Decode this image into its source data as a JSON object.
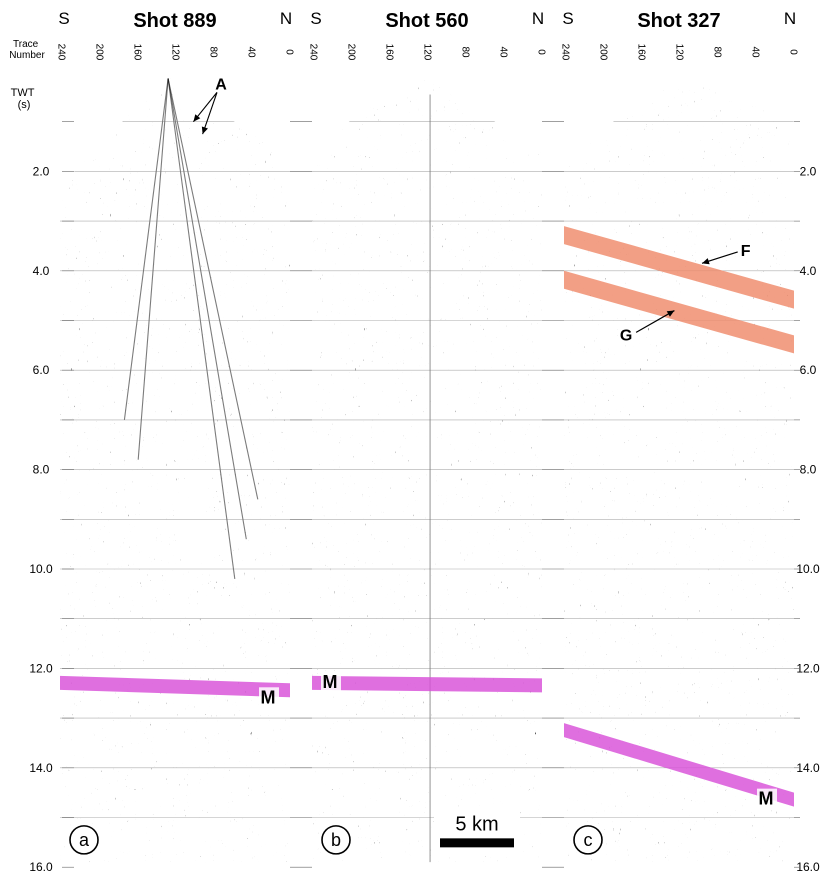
{
  "header": {
    "trace_label": "Trace\nNumber",
    "twt_label": "TWT\n(s)"
  },
  "time_axis": {
    "ticks": [
      "2.0",
      "4.0",
      "6.0",
      "8.0",
      "10.0",
      "12.0",
      "14.0",
      "16.0"
    ],
    "range_s": [
      0,
      16
    ]
  },
  "panels": [
    {
      "id": "a",
      "title": "Shot 889",
      "south_label": "S",
      "north_label": "N",
      "panel_letter": "a",
      "trace_ticks": [
        "240",
        "200",
        "160",
        "120",
        "80",
        "40",
        "0"
      ],
      "annotations": [
        {
          "letter": "A",
          "kind": "arrows"
        }
      ],
      "bands": [
        {
          "label": "M",
          "kind": "moho",
          "color": "#d84fd8",
          "twt_left_s": 12.15,
          "twt_right_s": 12.3
        }
      ]
    },
    {
      "id": "b",
      "title": "Shot 560",
      "south_label": "S",
      "north_label": "N",
      "panel_letter": "b",
      "trace_ticks": [
        "240",
        "200",
        "160",
        "120",
        "80",
        "40",
        "0"
      ],
      "annotations": [],
      "bands": [
        {
          "label": "M",
          "kind": "moho",
          "color": "#d84fd8",
          "twt_left_s": 12.15,
          "twt_right_s": 12.2
        }
      ],
      "scale_bar": {
        "label": "5 km"
      }
    },
    {
      "id": "c",
      "title": "Shot 327",
      "south_label": "S",
      "north_label": "N",
      "panel_letter": "c",
      "trace_ticks": [
        "240",
        "200",
        "160",
        "120",
        "80",
        "40",
        "0"
      ],
      "annotations": [],
      "bands": [
        {
          "label": "F",
          "kind": "reflector",
          "color": "#ef8a6a",
          "twt_left_s": 3.1,
          "twt_right_s": 4.4
        },
        {
          "label": "G",
          "kind": "reflector",
          "color": "#ef8a6a",
          "twt_left_s": 4.0,
          "twt_right_s": 5.3
        },
        {
          "label": "M",
          "kind": "moho",
          "color": "#d84fd8",
          "twt_left_s": 13.1,
          "twt_right_s": 14.5
        }
      ]
    }
  ]
}
